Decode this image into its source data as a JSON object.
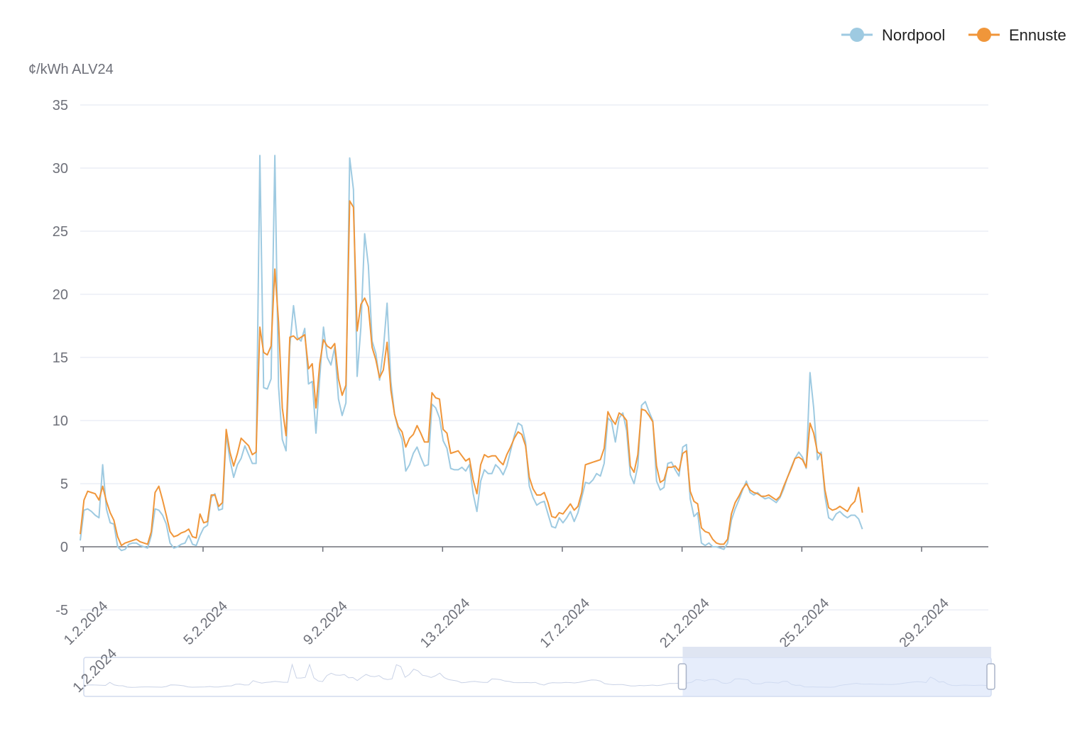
{
  "colors": {
    "nordpool": "#9ecae1",
    "ennuste": "#f0963a",
    "grid": "#e0e6f1",
    "axis": "#6e7079",
    "text": "#222222",
    "zoom_fill": "#d6e1f8",
    "zoom_border": "#d2dbee"
  },
  "chart_data": {
    "type": "line",
    "title": "",
    "xlabel": "",
    "ylabel": "¢/kWh ALV24",
    "ylim": [
      -5,
      35
    ],
    "yticks": [
      -5,
      0,
      5,
      10,
      15,
      20,
      25,
      30,
      35
    ],
    "x_start": "2024-01-31T09:00",
    "x_end": "2024-03-01T17:00",
    "x_step_hours": 3,
    "x_ticks": [
      "1.2.2024",
      "5.2.2024",
      "9.2.2024",
      "13.2.2024",
      "17.2.2024",
      "21.2.2024",
      "25.2.2024",
      "29.2.2024"
    ],
    "legend": {
      "position": "top-right",
      "items": [
        "Nordpool",
        "Ennuste"
      ]
    },
    "grid": true,
    "zoom_slider": {
      "start_label": "1.2.2024",
      "range": [
        0.66,
        1.0
      ]
    },
    "series": [
      {
        "name": "Nordpool",
        "values": [
          0.5,
          2.9,
          3.0,
          2.8,
          2.5,
          2.3,
          6.5,
          3.0,
          1.9,
          1.8,
          0.0,
          -0.3,
          -0.2,
          0.2,
          0.3,
          0.3,
          0.1,
          0.0,
          -0.1,
          0.9,
          3.0,
          2.9,
          2.5,
          1.8,
          0.3,
          -0.1,
          0.0,
          0.2,
          0.3,
          0.9,
          0.2,
          0.1,
          0.9,
          1.5,
          1.7,
          3.9,
          4.2,
          2.9,
          3.0,
          8.9,
          6.9,
          5.5,
          6.5,
          7.0,
          8.0,
          7.3,
          6.6,
          6.6,
          31.0,
          12.6,
          12.5,
          13.3,
          31.0,
          12.7,
          8.5,
          7.6,
          15.9,
          19.1,
          16.6,
          16.3,
          17.3,
          12.9,
          13.1,
          9.0,
          13.4,
          17.4,
          15.0,
          14.4,
          15.8,
          11.7,
          10.4,
          11.4,
          30.8,
          28.3,
          13.5,
          17.4,
          24.8,
          22.3,
          16.3,
          15.3,
          13.2,
          15.6,
          19.3,
          13.1,
          10.5,
          9.3,
          8.5,
          6.0,
          6.5,
          7.4,
          7.9,
          7.1,
          6.4,
          6.5,
          11.3,
          11.0,
          10.2,
          8.4,
          7.8,
          6.2,
          6.1,
          6.1,
          6.3,
          6.0,
          6.5,
          4.2,
          2.8,
          5.2,
          6.1,
          5.8,
          5.8,
          6.5,
          6.2,
          5.7,
          6.4,
          7.6,
          8.8,
          9.8,
          9.6,
          8.3,
          4.8,
          3.9,
          3.3,
          3.5,
          3.6,
          2.6,
          1.6,
          1.5,
          2.3,
          1.9,
          2.3,
          2.8,
          2.0,
          2.7,
          3.9,
          5.1,
          5.0,
          5.3,
          5.8,
          5.6,
          6.6,
          10.2,
          9.9,
          8.3,
          10.2,
          10.6,
          9.2,
          5.7,
          5.0,
          6.4,
          11.2,
          11.5,
          10.7,
          10.0,
          5.2,
          4.5,
          4.7,
          6.6,
          6.7,
          6.1,
          5.6,
          7.9,
          8.1,
          3.8,
          2.4,
          2.7,
          0.3,
          0.1,
          0.3,
          0.0,
          0.0,
          -0.1,
          -0.2,
          0.3,
          2.1,
          3.0,
          3.7,
          4.5,
          5.2,
          4.3,
          4.1,
          4.3,
          4.0,
          3.8,
          3.9,
          3.7,
          3.5,
          3.9,
          4.6,
          5.5,
          6.3,
          7.0,
          7.5,
          7.1,
          6.2,
          13.8,
          11.0,
          6.9,
          7.5,
          4.0,
          2.3,
          2.1,
          2.6,
          2.8,
          2.5,
          2.3,
          2.5,
          2.5,
          2.2,
          1.4
        ]
      },
      {
        "name": "Ennuste",
        "values": [
          1.0,
          3.7,
          4.4,
          4.3,
          4.2,
          3.7,
          4.8,
          3.6,
          2.7,
          2.1,
          0.8,
          0.1,
          0.3,
          0.4,
          0.5,
          0.6,
          0.4,
          0.3,
          0.2,
          1.2,
          4.3,
          4.8,
          3.7,
          2.5,
          1.2,
          0.8,
          0.9,
          1.1,
          1.2,
          1.4,
          0.8,
          0.7,
          2.6,
          1.9,
          2.0,
          4.1,
          4.1,
          3.2,
          3.5,
          9.3,
          7.5,
          6.4,
          7.4,
          8.6,
          8.3,
          8.0,
          7.3,
          7.5,
          17.4,
          15.4,
          15.2,
          15.9,
          22.0,
          17.8,
          11.0,
          8.8,
          16.6,
          16.7,
          16.4,
          16.6,
          16.8,
          14.1,
          14.5,
          11.0,
          14.5,
          16.4,
          15.9,
          15.7,
          16.1,
          13.3,
          12.0,
          12.8,
          27.4,
          26.9,
          17.1,
          19.2,
          19.7,
          19.0,
          15.8,
          14.8,
          13.4,
          14.0,
          16.2,
          12.4,
          10.5,
          9.5,
          9.1,
          7.9,
          8.6,
          8.9,
          9.6,
          9.0,
          8.3,
          8.3,
          12.2,
          11.8,
          11.7,
          9.3,
          9.0,
          7.4,
          7.5,
          7.6,
          7.2,
          6.8,
          7.0,
          5.3,
          4.2,
          6.5,
          7.3,
          7.1,
          7.2,
          7.2,
          6.8,
          6.5,
          7.3,
          7.9,
          8.6,
          9.1,
          8.9,
          8.0,
          5.5,
          4.6,
          4.1,
          4.1,
          4.3,
          3.5,
          2.4,
          2.3,
          2.7,
          2.6,
          3.0,
          3.4,
          2.9,
          3.2,
          4.3,
          6.5,
          6.6,
          6.7,
          6.8,
          6.9,
          7.8,
          10.7,
          10.1,
          9.7,
          10.6,
          10.4,
          10.0,
          6.4,
          5.9,
          7.3,
          10.9,
          10.8,
          10.4,
          9.9,
          6.4,
          5.1,
          5.3,
          6.3,
          6.3,
          6.4,
          6.0,
          7.4,
          7.6,
          4.4,
          3.6,
          3.4,
          1.5,
          1.2,
          1.1,
          0.6,
          0.3,
          0.2,
          0.2,
          0.6,
          2.6,
          3.5,
          4.0,
          4.6,
          5.0,
          4.5,
          4.3,
          4.2,
          4.0,
          4.0,
          4.1,
          3.9,
          3.7,
          4.0,
          4.8,
          5.5,
          6.2,
          7.0,
          7.1,
          6.9,
          6.3,
          9.8,
          9.0,
          7.5,
          7.3,
          4.5,
          3.1,
          2.9,
          3.0,
          3.2,
          3.0,
          2.8,
          3.3,
          3.6,
          4.7,
          2.7
        ]
      }
    ]
  }
}
